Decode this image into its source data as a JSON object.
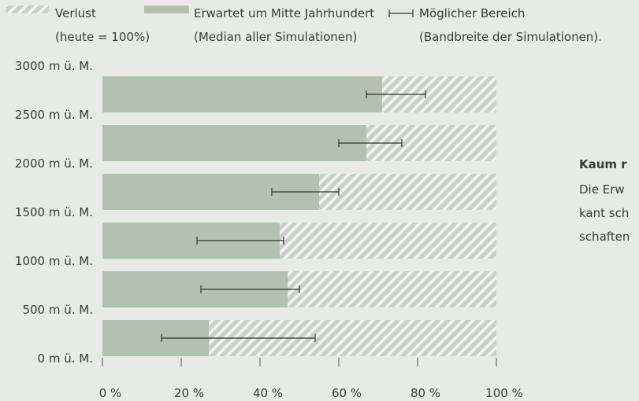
{
  "chart_data": {
    "type": "bar",
    "orientation": "horizontal",
    "legend": [
      {
        "name": "Verlust",
        "note": "(heute = 100%)",
        "color": "#c9d1c6"
      },
      {
        "name": "Erwartet um Mitte Jahrhundert",
        "note": "(Median aller Simulationen)",
        "color": "#b4c1b2"
      },
      {
        "name": "Möglicher Bereich",
        "note": "(Bandbreite der Simulationen)."
      }
    ],
    "values": [
      27,
      47,
      45,
      55,
      67,
      71
    ],
    "low": [
      15,
      25,
      24,
      43,
      60,
      67
    ],
    "high": [
      54,
      50,
      46,
      60,
      76,
      82
    ],
    "color": "#b4c1b2",
    "loss_color": "#c9d1c6",
    "error_color": "#333333",
    "xlim": [
      0,
      100
    ],
    "xticks": [
      {
        "value": 0,
        "label": "0 %"
      },
      {
        "value": 20,
        "label": "20 %"
      },
      {
        "value": 40,
        "label": "40 %"
      },
      {
        "value": 60,
        "label": "60 %"
      },
      {
        "value": 80,
        "label": "80 %"
      },
      {
        "value": 100,
        "label": "100 %"
      }
    ],
    "yticks": [
      {
        "value": 0,
        "label": "0 m ü. M."
      },
      {
        "value": 500,
        "label": "500 m ü. M."
      },
      {
        "value": 1000,
        "label": "1000 m ü. M."
      },
      {
        "value": 1500,
        "label": "1500 m ü. M."
      },
      {
        "value": 2000,
        "label": "2000 m ü. M."
      },
      {
        "value": 2500,
        "label": "2500 m ü. M."
      },
      {
        "value": 3000,
        "label": "3000 m ü. M."
      }
    ],
    "side_text": {
      "heading": "Kaum r",
      "lines": [
        "Die Erw",
        "kant sch",
        "schaften"
      ]
    }
  }
}
